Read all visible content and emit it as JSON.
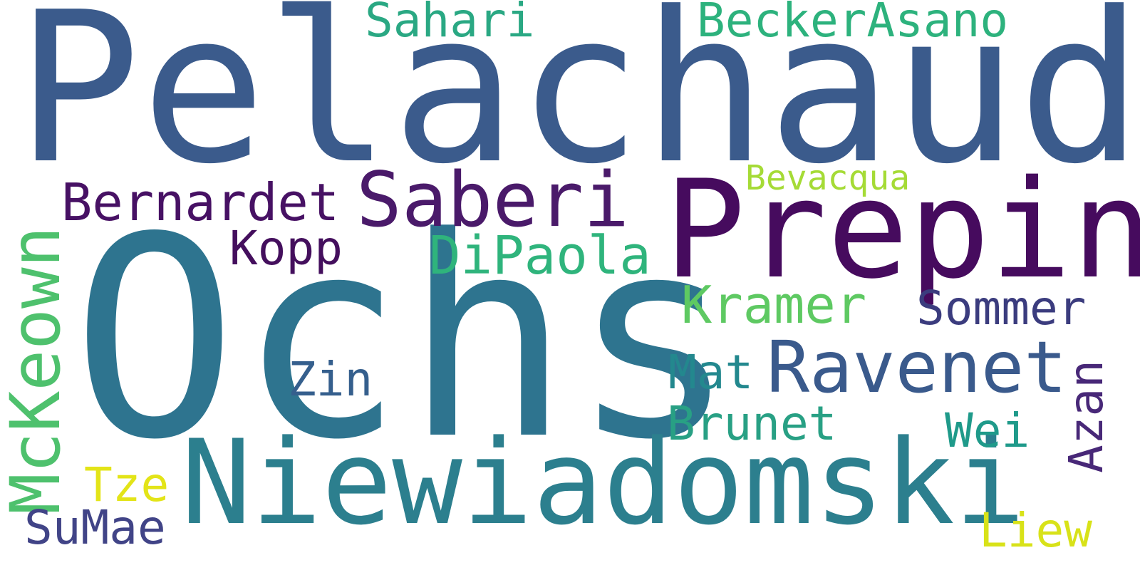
{
  "words": {
    "pelachaud": {
      "text": "Pelachaud",
      "color": "#3b5b8c"
    },
    "ochs": {
      "text": "Ochs",
      "color": "#2e748f"
    },
    "prepin": {
      "text": "Prepin",
      "color": "#460b5e"
    },
    "niewiadomski": {
      "text": "Niewiadomski",
      "color": "#2c7f8e"
    },
    "saberi": {
      "text": "Saberi",
      "color": "#4a1a6a"
    },
    "mckeown": {
      "text": "McKeown",
      "color": "#4ec16d"
    },
    "ravenet": {
      "text": "Ravenet",
      "color": "#3a5a8c"
    },
    "bernardet": {
      "text": "Bernardet",
      "color": "#471164"
    },
    "dipaola": {
      "text": "DiPaola",
      "color": "#2fb47c"
    },
    "kramer": {
      "text": "Kramer",
      "color": "#5ec962"
    },
    "sommer": {
      "text": "Sommer",
      "color": "#3b3c7e"
    },
    "kopp": {
      "text": "Kopp",
      "color": "#440f5d"
    },
    "brunet": {
      "text": "Brunet",
      "color": "#28a084"
    },
    "sahari": {
      "text": "Sahari",
      "color": "#2aa883"
    },
    "beckerasano": {
      "text": "BeckerAsano",
      "color": "#2db27d"
    },
    "bevacqua": {
      "text": "Bevacqua",
      "color": "#a5db36"
    },
    "zin": {
      "text": "Zin",
      "color": "#355f8d"
    },
    "mat": {
      "text": "Mat",
      "color": "#23888e"
    },
    "wei": {
      "text": "Wei",
      "color": "#1f9a8a"
    },
    "azan": {
      "text": "Azan",
      "color": "#482878"
    },
    "tze": {
      "text": "Tze",
      "color": "#e3e418"
    },
    "sumae": {
      "text": "SuMae",
      "color": "#414487"
    },
    "liew": {
      "text": "Liew",
      "color": "#d8e219"
    }
  }
}
